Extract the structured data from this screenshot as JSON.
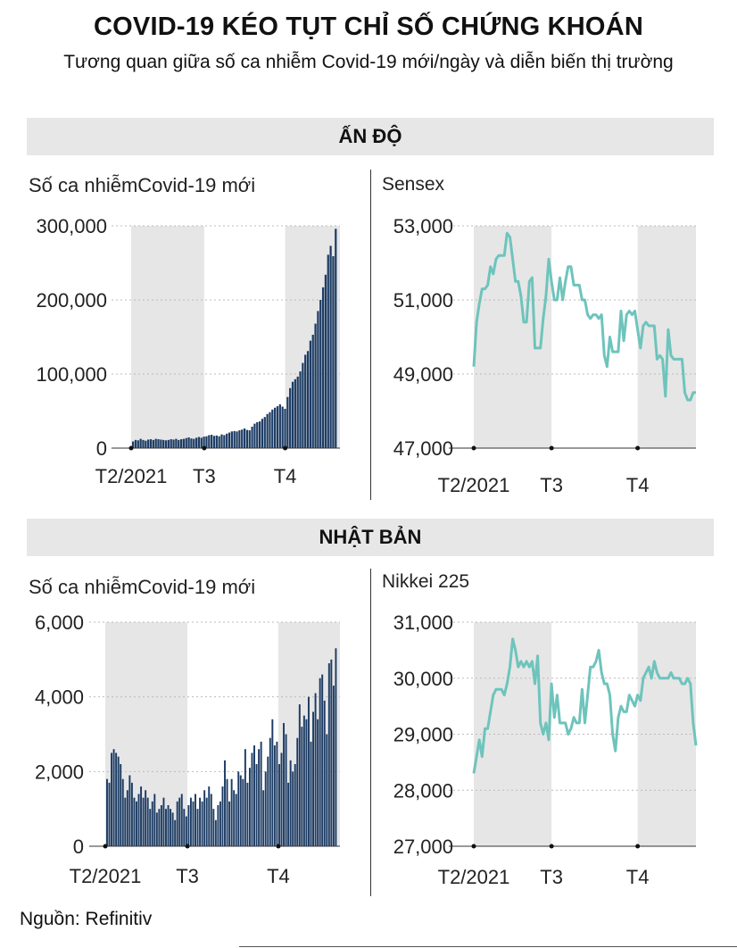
{
  "title": "COVID-19 KÉO TỤT CHỈ SỐ CHỨNG KHOÁN",
  "subtitle": "Tương quan giữa số ca nhiễm Covid-19 mới/ngày và diễn biến thị trường",
  "sections": {
    "india": {
      "label": "ẤN ĐỘ"
    },
    "japan": {
      "label": "NHẬT BẢN"
    }
  },
  "source": "Nguồn: Refinitiv",
  "colors": {
    "bar": "#1d3c64",
    "line": "#6ec4bc",
    "shade": "#e6e6e6",
    "band": "#e7e7e7"
  },
  "chart_data": [
    {
      "id": "india_cases",
      "type": "bar",
      "title": "Số ca nhiễmCovid-19 mới",
      "ylim": [
        0,
        300000
      ],
      "yticks": [
        0,
        100000,
        200000,
        300000
      ],
      "ytick_labels": [
        "0",
        "100,000",
        "200,000",
        "300,000"
      ],
      "xticks": [
        "T2/2021",
        "T3",
        "T4"
      ],
      "xtick_pos": [
        0,
        28,
        59
      ],
      "shaded_ranges": [
        [
          0,
          28
        ],
        [
          59,
          80
        ]
      ],
      "x_extent": 80,
      "values": [
        9000,
        11000,
        10500,
        12500,
        11000,
        10000,
        11500,
        12000,
        11000,
        12500,
        12000,
        11500,
        11000,
        10500,
        11000,
        12000,
        11500,
        12500,
        11000,
        12000,
        12500,
        13500,
        14500,
        13000,
        12500,
        14000,
        15000,
        14000,
        15500,
        16000,
        17500,
        18000,
        16500,
        17000,
        16000,
        18500,
        17500,
        19500,
        21000,
        22500,
        23000,
        22500,
        24000,
        25000,
        26500,
        24500,
        24000,
        29000,
        33000,
        35000,
        36000,
        39500,
        42000,
        46000,
        48500,
        52000,
        54500,
        56500,
        59000,
        56000,
        53000,
        69000,
        81000,
        89500,
        93000,
        96500,
        103500,
        115000,
        126000,
        131000,
        145000,
        153000,
        168000,
        185000,
        200000,
        217000,
        234000,
        261000,
        273000,
        259000,
        296000
      ]
    },
    {
      "id": "india_sensex",
      "type": "line",
      "title": "Sensex",
      "ylim": [
        47000,
        53000
      ],
      "yticks": [
        47000,
        49000,
        51000,
        53000
      ],
      "ytick_labels": [
        "47,000",
        "49,000",
        "51,000",
        "53,000"
      ],
      "xticks": [
        "T2/2021",
        "T3",
        "T4"
      ],
      "xtick_pos": [
        0,
        28,
        59
      ],
      "shaded_ranges": [
        [
          0,
          28
        ],
        [
          59,
          80
        ]
      ],
      "x_extent": 80,
      "x": [
        0,
        1,
        2,
        3,
        4,
        5,
        6,
        7,
        8,
        9,
        10,
        11,
        12,
        13,
        14,
        15,
        16,
        17,
        18,
        19,
        20,
        21,
        22,
        23,
        24,
        25,
        26,
        27,
        28,
        29,
        30,
        31,
        32,
        33,
        34,
        35,
        36,
        37,
        38,
        39,
        40,
        41,
        42,
        43,
        44,
        45,
        46,
        47,
        48,
        49,
        50,
        51,
        52,
        53,
        54,
        55,
        56,
        57,
        58,
        59,
        60,
        61,
        62,
        63,
        64,
        65,
        66,
        67,
        68,
        69,
        70,
        71,
        72,
        73,
        74,
        75,
        76,
        77,
        78,
        79,
        80
      ],
      "values": [
        49200,
        50400,
        50900,
        51300,
        51300,
        51400,
        51900,
        51700,
        52100,
        52200,
        52200,
        52200,
        52800,
        52700,
        52100,
        51500,
        51500,
        51100,
        50400,
        50400,
        51500,
        51600,
        49700,
        49700,
        49700,
        50500,
        51100,
        52100,
        51500,
        51000,
        51000,
        51600,
        51000,
        51500,
        51900,
        51900,
        51400,
        51400,
        51400,
        51000,
        51000,
        50600,
        50500,
        50600,
        50600,
        50500,
        50600,
        49500,
        49200,
        50000,
        49600,
        49600,
        49600,
        50700,
        49900,
        50600,
        50700,
        50600,
        50700,
        50200,
        49700,
        50300,
        50400,
        50300,
        50300,
        50300,
        49400,
        49500,
        49400,
        48400,
        50200,
        49500,
        49400,
        49400,
        49400,
        49400,
        48500,
        48300,
        48300,
        48500,
        48500
      ]
    },
    {
      "id": "japan_cases",
      "type": "bar",
      "title": "Số ca nhiễmCovid-19 mới",
      "ylim": [
        0,
        6000
      ],
      "yticks": [
        0,
        2000,
        4000,
        6000
      ],
      "ytick_labels": [
        "0",
        "2,000",
        "4,000",
        "6,000"
      ],
      "xticks": [
        "T2/2021",
        "T3",
        "T4"
      ],
      "xtick_pos": [
        0,
        28,
        59
      ],
      "shaded_ranges": [
        [
          0,
          28
        ],
        [
          59,
          80
        ]
      ],
      "x_extent": 80,
      "values": [
        1800,
        1700,
        2500,
        2600,
        2500,
        2400,
        2200,
        1800,
        1300,
        1500,
        1900,
        1700,
        1300,
        1200,
        1400,
        1600,
        1300,
        1500,
        1300,
        1000,
        1200,
        1400,
        900,
        1000,
        1100,
        1300,
        1000,
        1100,
        1000,
        900,
        700,
        1200,
        1300,
        1400,
        1000,
        800,
        1100,
        1300,
        1200,
        1400,
        1000,
        1300,
        1200,
        1500,
        1300,
        1600,
        1400,
        1000,
        700,
        1100,
        1200,
        1600,
        2300,
        1800,
        1200,
        1800,
        1500,
        1400,
        2000,
        1900,
        1800,
        2600,
        1700,
        2100,
        2500,
        2700,
        2200,
        2600,
        2800,
        1500,
        2000,
        2400,
        2900,
        3400,
        2700,
        2800,
        2200,
        2500,
        3300,
        3000,
        1700,
        2300,
        2000,
        2200,
        2900,
        3800,
        3200,
        3500,
        3400,
        4000,
        2800,
        3600,
        4100,
        3400,
        4500,
        4600,
        3900,
        3000,
        4900,
        5000,
        4300,
        5300
      ],
      "x_extent_override": 101
    },
    {
      "id": "japan_nikkei",
      "type": "line",
      "title": "Nikkei 225",
      "ylim": [
        27000,
        31000
      ],
      "yticks": [
        27000,
        28000,
        29000,
        30000,
        31000
      ],
      "ytick_labels": [
        "27,000",
        "28,000",
        "29,000",
        "30,000",
        "31,000"
      ],
      "xticks": [
        "T2/2021",
        "T3",
        "T4"
      ],
      "xtick_pos": [
        0,
        28,
        59
      ],
      "shaded_ranges": [
        [
          0,
          28
        ],
        [
          59,
          80
        ]
      ],
      "x_extent": 80,
      "values": [
        28300,
        28600,
        28900,
        28600,
        29100,
        29100,
        29400,
        29700,
        29800,
        29800,
        29800,
        29700,
        29900,
        30200,
        30700,
        30500,
        30200,
        30300,
        30200,
        30300,
        30200,
        30300,
        29900,
        30400,
        29200,
        29000,
        29200,
        28900,
        29900,
        29300,
        29700,
        29200,
        29200,
        29200,
        29000,
        29100,
        29300,
        29200,
        29200,
        29800,
        29200,
        29700,
        30200,
        30200,
        30300,
        30500,
        30100,
        29900,
        29900,
        29700,
        29000,
        28700,
        29300,
        29500,
        29400,
        29400,
        29700,
        29600,
        29500,
        29700,
        29600,
        30000,
        30100,
        30200,
        30000,
        30300,
        30100,
        30000,
        30000,
        30000,
        30000,
        30100,
        30000,
        30000,
        30000,
        29900,
        29900,
        30000,
        29900,
        29200,
        28800
      ]
    }
  ]
}
